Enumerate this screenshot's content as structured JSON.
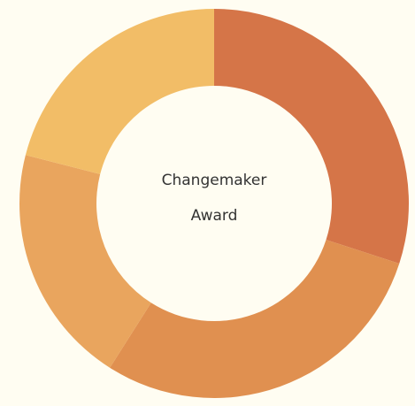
{
  "chart_data": {
    "type": "donut",
    "title": "Changemaker Award",
    "values": [
      30,
      29,
      20,
      21
    ],
    "colors": [
      "#d57548",
      "#e09050",
      "#e9a55e",
      "#f2bd67"
    ],
    "background": "#fffdf2"
  }
}
